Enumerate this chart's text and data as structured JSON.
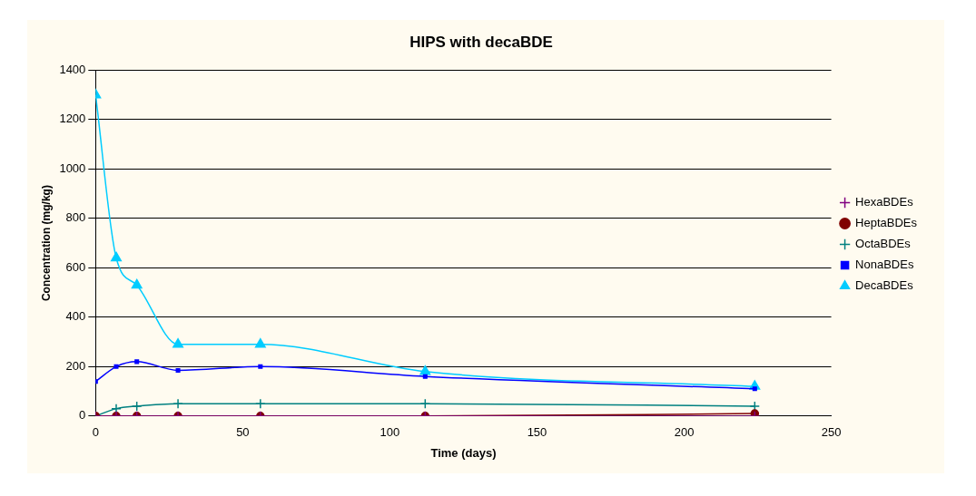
{
  "chart_data": {
    "type": "line",
    "title": "HIPS with decaBDE",
    "xlabel": "Time (days)",
    "ylabel": "Concentration (mg/kg)",
    "x": [
      0,
      7,
      14,
      28,
      56,
      112,
      224
    ],
    "xlim": [
      0,
      250
    ],
    "xticks": [
      0,
      50,
      100,
      150,
      200,
      250
    ],
    "ylim": [
      0,
      1400
    ],
    "yticks": [
      0,
      200,
      400,
      600,
      800,
      1000,
      1200,
      1400
    ],
    "grid": "y",
    "legend": "right",
    "series": [
      {
        "name": "HexaBDEs",
        "color": "#800080",
        "marker": "cross",
        "values": [
          0,
          0,
          0,
          0,
          0,
          0,
          0
        ]
      },
      {
        "name": "HeptaBDEs",
        "color": "#800000",
        "marker": "circle",
        "values": [
          0,
          0,
          0,
          0,
          0,
          0,
          10
        ]
      },
      {
        "name": "OctaBDEs",
        "color": "#008080",
        "marker": "cross",
        "values": [
          0,
          30,
          40,
          50,
          50,
          50,
          40
        ]
      },
      {
        "name": "NonaBDEs",
        "color": "#0000ff",
        "marker": "square",
        "values": [
          140,
          200,
          220,
          185,
          200,
          160,
          110
        ]
      },
      {
        "name": "DecaBDEs",
        "color": "#00ccff",
        "marker": "triangle",
        "values": [
          1300,
          640,
          530,
          290,
          290,
          180,
          120
        ]
      }
    ]
  }
}
